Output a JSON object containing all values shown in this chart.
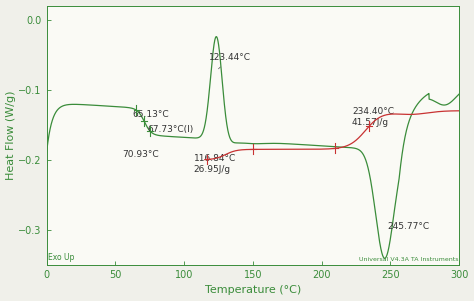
{
  "title": "",
  "xlabel": "Temperature (°C)",
  "ylabel": "Heat Flow (W/g)",
  "xlim": [
    0,
    300
  ],
  "ylim": [
    -0.35,
    0.02
  ],
  "yticks": [
    0.0,
    -0.1,
    -0.2,
    -0.3
  ],
  "xticks": [
    0,
    50,
    100,
    150,
    200,
    250,
    300
  ],
  "green_color": "#3a8c3a",
  "red_color": "#c83232",
  "bg_color": "#f0f0ea",
  "plot_bg": "#fafaf5",
  "exo_up_text": "Exo Up",
  "instrument_text": "Universal V4.3A TA Instruments",
  "tick_fontsize": 7,
  "label_fontsize": 8,
  "annot_fontsize": 6.5
}
